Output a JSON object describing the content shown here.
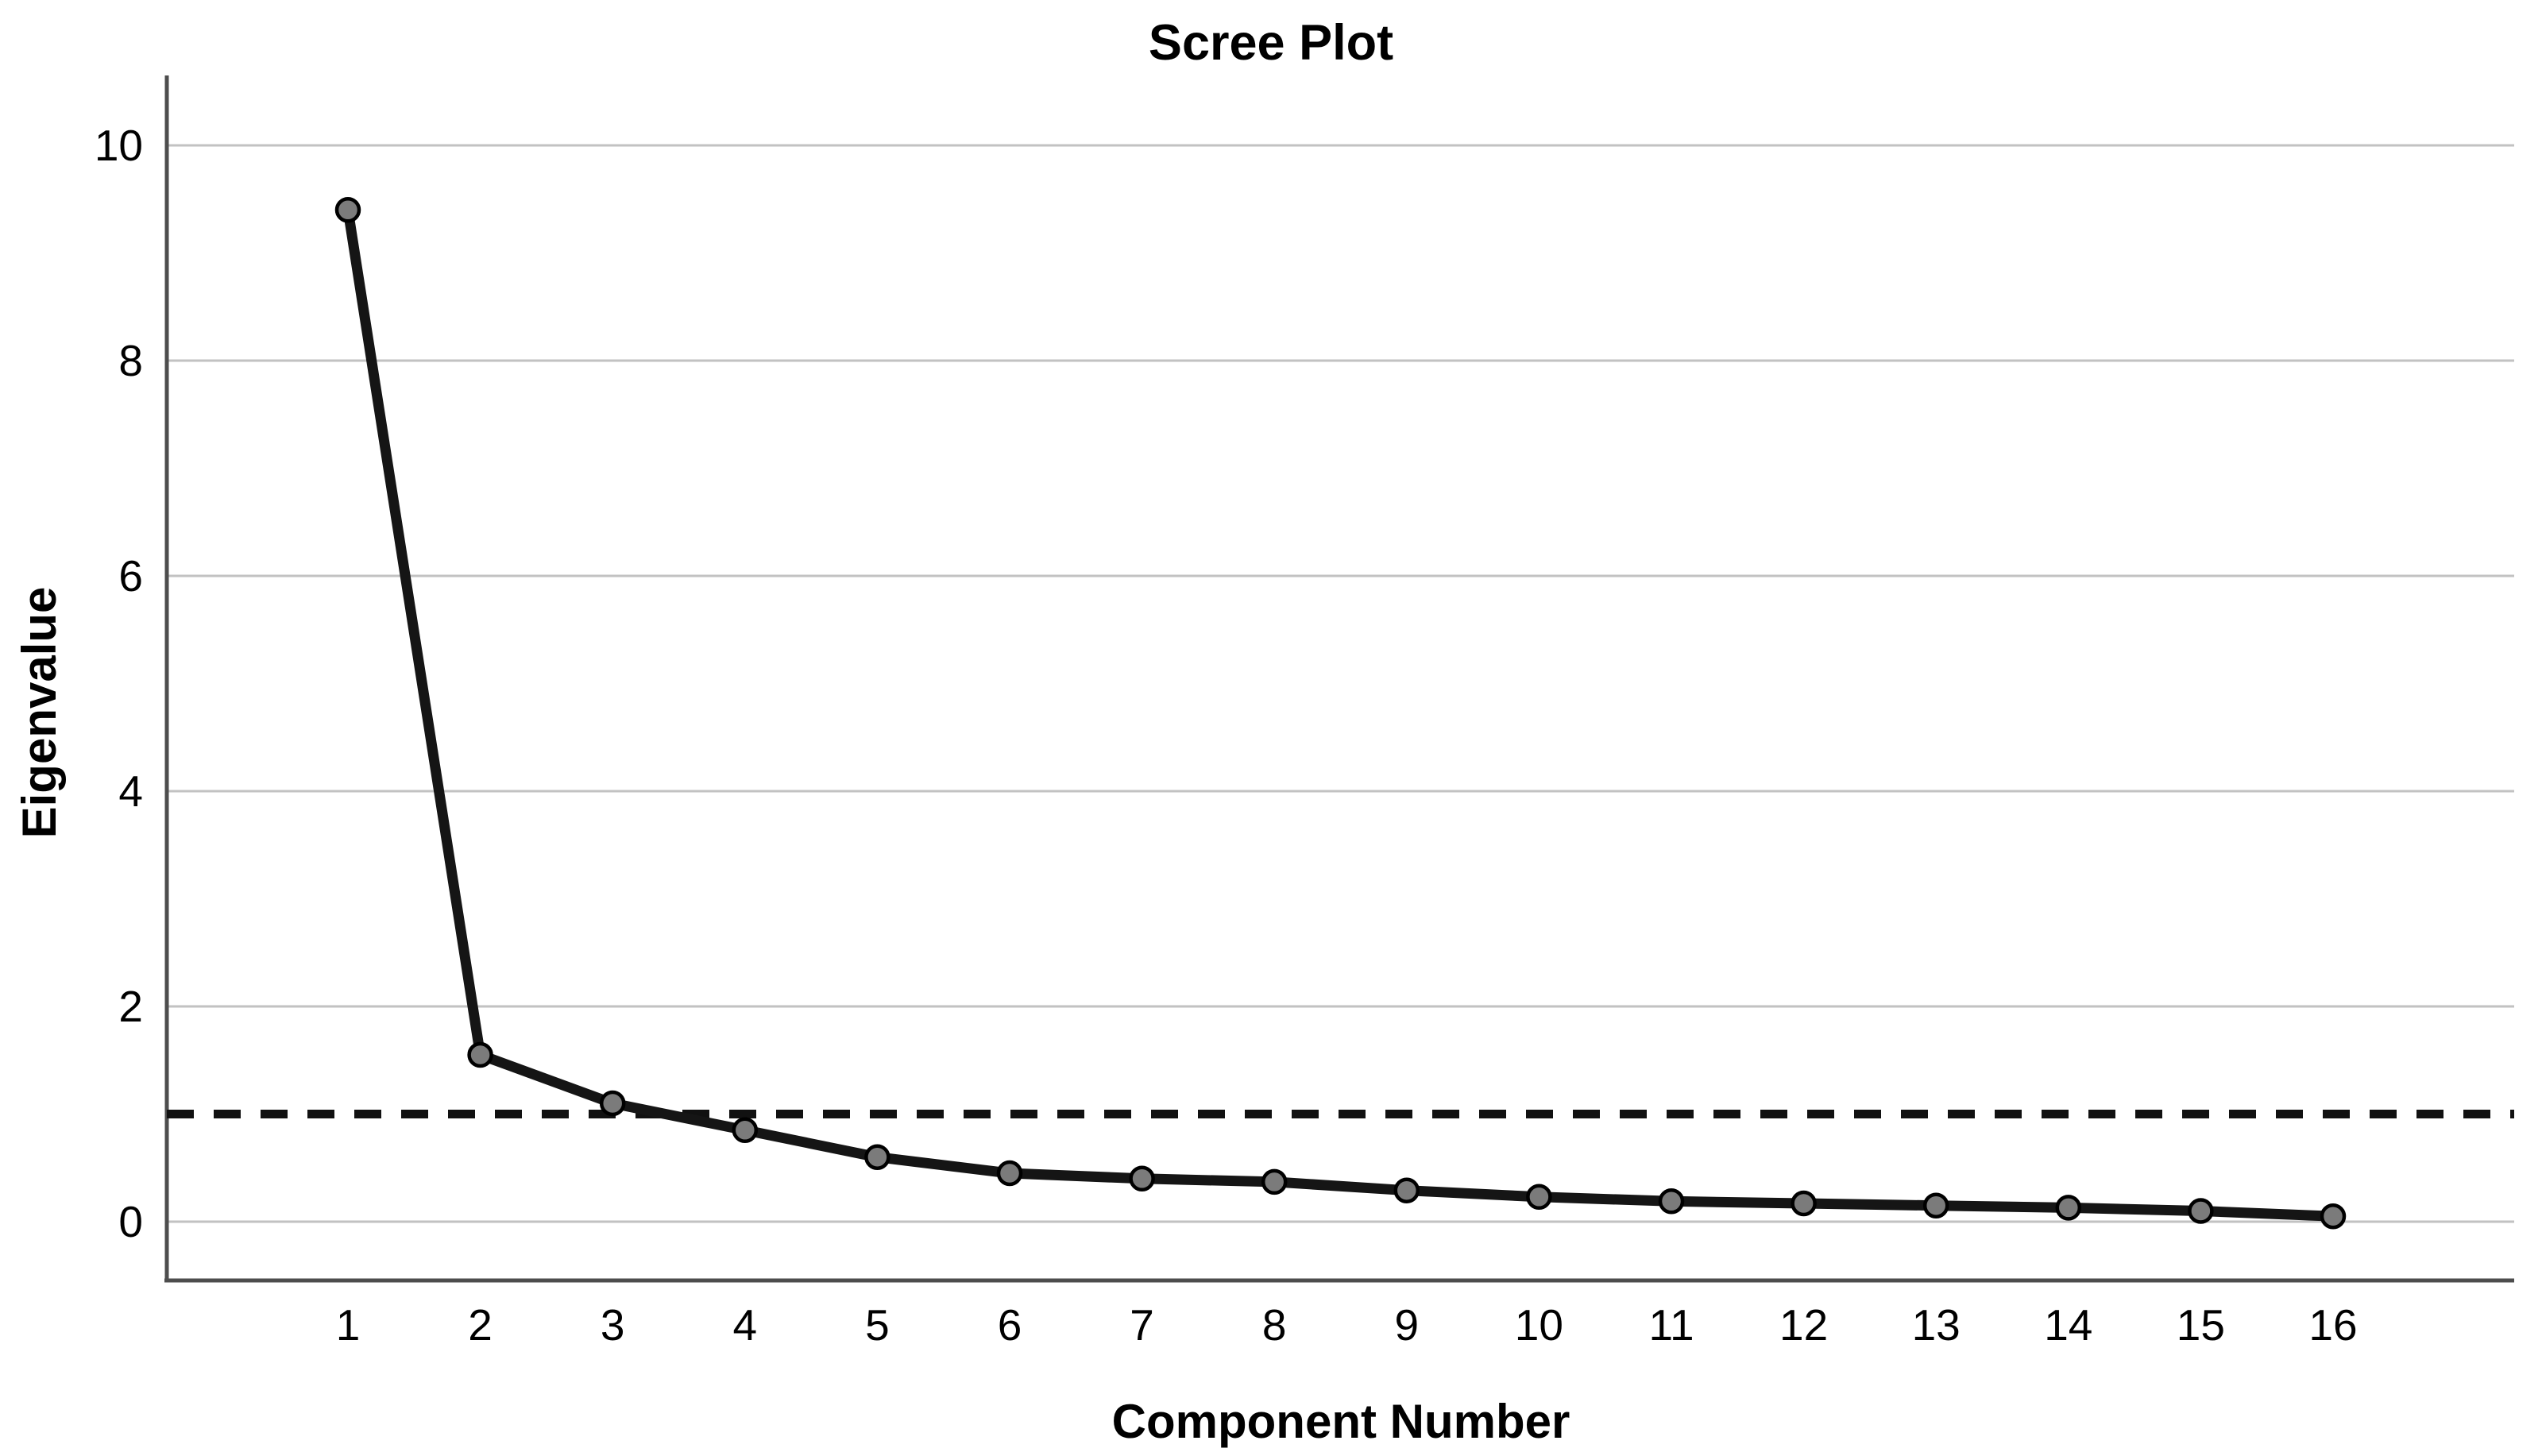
{
  "chart_data": {
    "type": "line",
    "title": "Scree Plot",
    "xlabel": "Component Number",
    "ylabel": "Eigenvalue",
    "x_categories": [
      "1",
      "2",
      "3",
      "4",
      "5",
      "6",
      "7",
      "8",
      "9",
      "10",
      "11",
      "12",
      "13",
      "14",
      "15",
      "16"
    ],
    "series": [
      {
        "name": "Eigenvalues",
        "values": [
          9.4,
          1.55,
          1.1,
          0.85,
          0.6,
          0.45,
          0.4,
          0.37,
          0.29,
          0.23,
          0.19,
          0.17,
          0.15,
          0.13,
          0.1,
          0.05
        ]
      }
    ],
    "yticks": [
      0,
      2,
      4,
      6,
      8,
      10
    ],
    "ylim": [
      0,
      10.65
    ],
    "reference_line": {
      "value": 1,
      "style": "dashed"
    },
    "grid": "horizontal-only",
    "legend": "none",
    "marker": "filled-circle",
    "colors": {
      "background": "#ffffff",
      "line": "#151515",
      "marker_fill": "#7b7b7b",
      "marker_stroke": "#000000",
      "gridline": "#c2c2c2",
      "axis": "#4d4d4d",
      "reference_line": "#111111",
      "text": "#000000"
    }
  }
}
